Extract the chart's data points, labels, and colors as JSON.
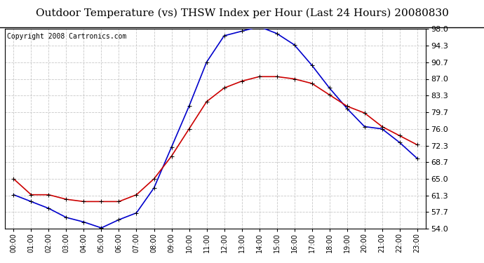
{
  "title": "Outdoor Temperature (vs) THSW Index per Hour (Last 24 Hours) 20080830",
  "copyright": "Copyright 2008 Cartronics.com",
  "hours": [
    "00:00",
    "01:00",
    "02:00",
    "03:00",
    "04:00",
    "05:00",
    "06:00",
    "07:00",
    "08:00",
    "09:00",
    "10:00",
    "11:00",
    "12:00",
    "13:00",
    "14:00",
    "15:00",
    "16:00",
    "17:00",
    "18:00",
    "19:00",
    "20:00",
    "21:00",
    "22:00",
    "23:00"
  ],
  "temp_red": [
    65.0,
    61.5,
    61.5,
    60.5,
    60.0,
    60.0,
    60.0,
    61.5,
    65.0,
    70.0,
    76.0,
    82.0,
    85.0,
    86.5,
    87.5,
    87.5,
    87.0,
    86.0,
    83.5,
    81.0,
    79.5,
    76.5,
    74.5,
    72.5
  ],
  "thsw_blue": [
    61.5,
    60.0,
    58.5,
    56.5,
    55.5,
    54.2,
    56.0,
    57.5,
    63.0,
    72.0,
    81.0,
    90.7,
    96.5,
    97.5,
    98.5,
    97.0,
    94.5,
    90.0,
    85.0,
    80.5,
    76.5,
    76.0,
    73.0,
    69.5
  ],
  "ylim": [
    54.0,
    98.0
  ],
  "yticks": [
    54.0,
    57.7,
    61.3,
    65.0,
    68.7,
    72.3,
    76.0,
    79.7,
    83.3,
    87.0,
    90.7,
    94.3,
    98.0
  ],
  "bg_color": "#ffffff",
  "grid_color": "#c8c8c8",
  "line_color_red": "#cc0000",
  "line_color_blue": "#0000cc",
  "title_fontsize": 11,
  "copyright_fontsize": 7,
  "tick_fontsize": 8,
  "xlabel_fontsize": 7
}
